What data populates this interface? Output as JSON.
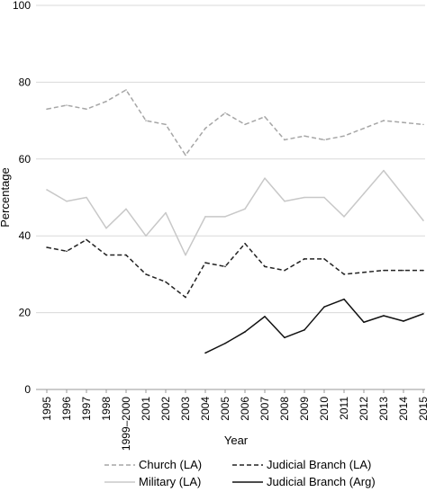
{
  "chart_data": {
    "type": "line",
    "xlabel": "Year",
    "ylabel": "Percentage",
    "ylim": [
      0,
      100
    ],
    "yticks": [
      0,
      20,
      40,
      60,
      80,
      100
    ],
    "grid": "horizontal",
    "legend": "bottom",
    "categories": [
      "1995",
      "1996",
      "1997",
      "1998",
      "1999–2000",
      "2001",
      "2002",
      "2003",
      "2004",
      "2005",
      "2006",
      "2007",
      "2008",
      "2009",
      "2010",
      "2011",
      "2012",
      "2013",
      "2014",
      "2015"
    ],
    "series": [
      {
        "name": "Church (LA)",
        "color": "#a6a6a6",
        "dash": "dashed",
        "values": [
          73,
          74,
          73,
          75,
          78,
          70,
          69,
          61,
          68,
          72,
          69,
          71,
          65,
          66,
          65,
          66,
          68,
          70,
          69.5,
          69
        ]
      },
      {
        "name": "Military (LA)",
        "color": "#c8c8c8",
        "dash": "solid",
        "values": [
          52,
          49,
          50,
          42,
          47,
          40,
          46,
          35,
          45,
          45,
          47,
          55,
          49,
          50,
          50,
          45,
          51,
          57,
          50.5,
          44
        ]
      },
      {
        "name": "Judicial Branch (LA)",
        "color": "#222222",
        "dash": "dashed",
        "values": [
          37,
          36,
          39,
          35,
          35,
          30,
          28,
          24,
          33,
          32,
          38,
          32,
          31,
          34,
          34,
          30,
          30.5,
          31,
          31,
          31
        ]
      },
      {
        "name": "Judicial Branch (Arg)",
        "color": "#111111",
        "dash": "solid",
        "values": [
          null,
          null,
          null,
          null,
          null,
          null,
          null,
          null,
          9.5,
          12,
          15,
          19,
          13.5,
          15.5,
          21.5,
          23.5,
          17.5,
          19.2,
          17.8,
          19.7
        ]
      }
    ]
  }
}
